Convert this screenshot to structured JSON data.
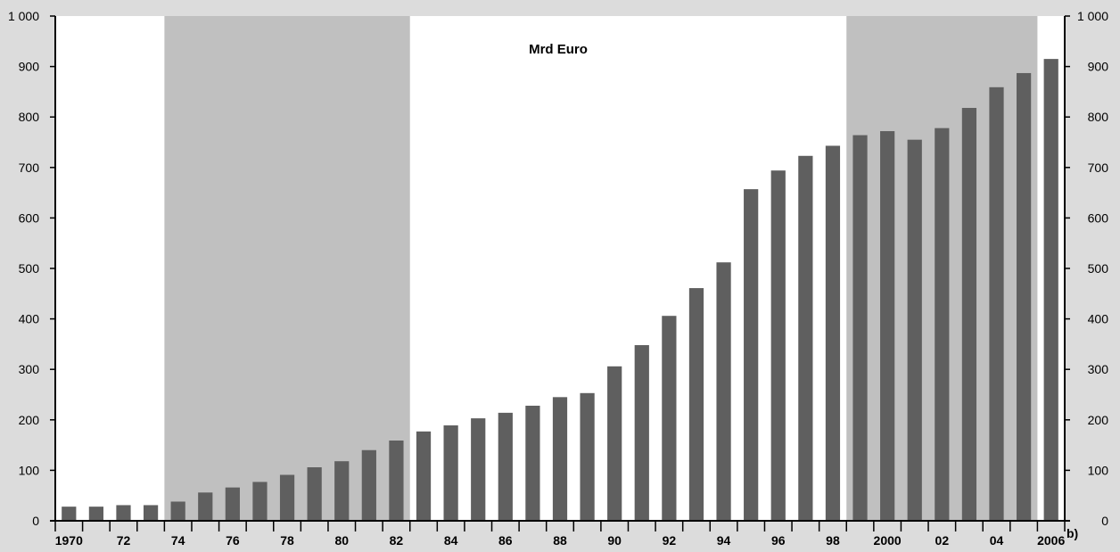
{
  "chart_data": {
    "type": "bar",
    "title": "Mrd Euro",
    "xlabel": "",
    "ylabel": "",
    "ylim": [
      0,
      1000
    ],
    "yticks": [
      0,
      100,
      200,
      300,
      400,
      500,
      600,
      700,
      800,
      900,
      1000
    ],
    "ytick_labels": [
      "0",
      "100",
      "200",
      "300",
      "400",
      "500",
      "600",
      "700",
      "800",
      "900",
      "1 000"
    ],
    "categories": [
      1970,
      1971,
      1972,
      1973,
      1974,
      1975,
      1976,
      1977,
      1978,
      1979,
      1980,
      1981,
      1982,
      1983,
      1984,
      1985,
      1986,
      1987,
      1988,
      1989,
      1990,
      1991,
      1992,
      1993,
      1994,
      1995,
      1996,
      1997,
      1998,
      1999,
      2000,
      2001,
      2002,
      2003,
      2004,
      2005,
      2006
    ],
    "category_labels": [
      "1970",
      "",
      "72",
      "",
      "74",
      "",
      "76",
      "",
      "78",
      "",
      "80",
      "",
      "82",
      "",
      "84",
      "",
      "86",
      "",
      "88",
      "",
      "90",
      "",
      "92",
      "",
      "94",
      "",
      "96",
      "",
      "98",
      "",
      "2000",
      "",
      "02",
      "",
      "04",
      "",
      "2006"
    ],
    "values": [
      28,
      28,
      31,
      31,
      38,
      56,
      66,
      77,
      91,
      106,
      118,
      140,
      159,
      177,
      189,
      203,
      214,
      228,
      245,
      253,
      306,
      348,
      406,
      461,
      512,
      657,
      694,
      723,
      743,
      764,
      772,
      755,
      778,
      818,
      859,
      887,
      915
    ],
    "shaded_periods": [
      {
        "from": 1974,
        "to": 1982
      },
      {
        "from": 1999,
        "to": 2005
      }
    ],
    "footnote_marker": "b)",
    "grid": false,
    "bar_color": "#5f5f5f",
    "shade_color": "#c0c0c0",
    "plot_background": "#ffffff",
    "page_background": "#dcdcdc"
  }
}
